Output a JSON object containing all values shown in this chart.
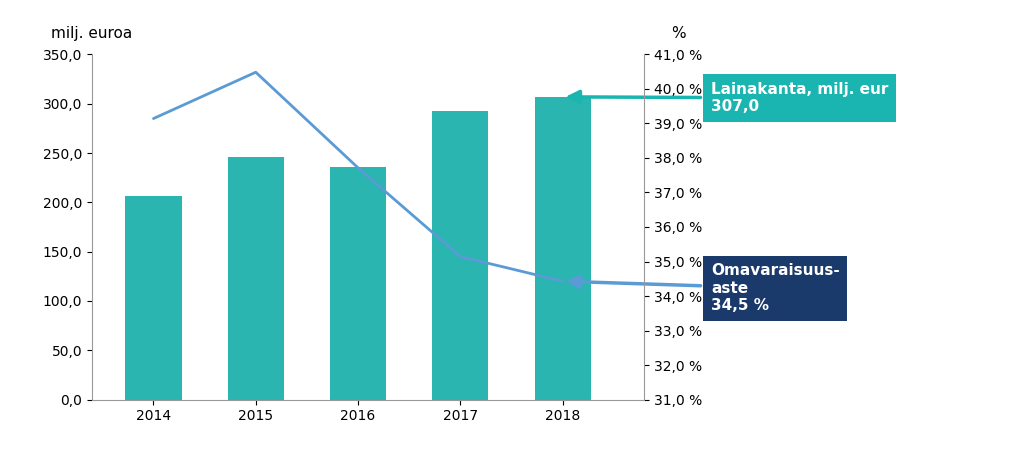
{
  "years": [
    2014,
    2015,
    2016,
    2017,
    2018
  ],
  "bar_values": [
    206.0,
    246.0,
    236.0,
    293.0,
    307.0
  ],
  "bar_color": "#2ab5b0",
  "line_values": [
    285.0,
    332.0,
    235.0,
    145.0,
    120.0
  ],
  "line_color": "#5b9bd5",
  "left_ylabel": "milj. euroa",
  "right_ylabel": "%",
  "left_ylim": [
    0,
    350
  ],
  "right_ylim": [
    31.0,
    41.0
  ],
  "left_yticks": [
    0,
    50,
    100,
    150,
    200,
    250,
    300,
    350
  ],
  "right_yticks": [
    31.0,
    32.0,
    33.0,
    34.0,
    35.0,
    36.0,
    37.0,
    38.0,
    39.0,
    40.0,
    41.0
  ],
  "annotation_teal_text1": "Lainakanta, milj. eur",
  "annotation_teal_text2": "307,0",
  "annotation_teal_color": "#1ab5b0",
  "annotation_navy_text1": "Omavaraisuus-\naste",
  "annotation_navy_text2": "34,5 %",
  "annotation_navy_color": "#1a3a6b",
  "background_color": "#ffffff",
  "label_fontsize": 11,
  "tick_fontsize": 10,
  "annot_fontsize": 11
}
